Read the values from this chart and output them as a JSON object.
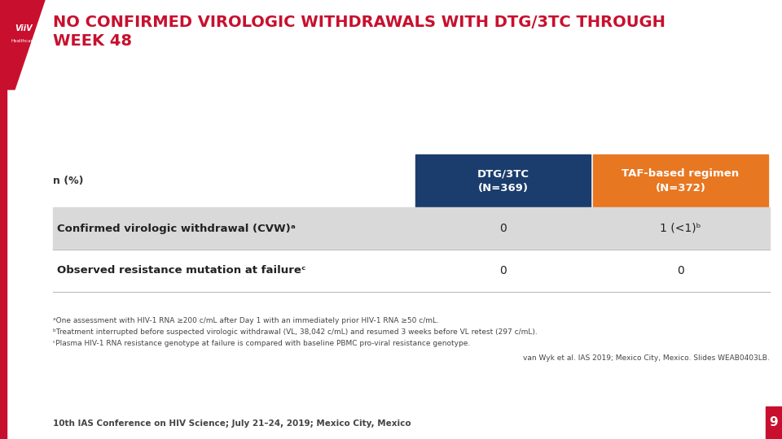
{
  "title_line1": "NO CONFIRMED VIROLOGIC WITHDRAWALS WITH DTG/3TC THROUGH",
  "title_line2": "WEEK 48",
  "title_color": "#c8102e",
  "title_fontsize": 14,
  "bg_color": "#ffffff",
  "sidebar_color": "#c8102e",
  "col1_header": "DTG/3TC\n(N=369)",
  "col2_header": "TAF-based regimen\n(N=372)",
  "col1_header_bg": "#1b3d6e",
  "col2_header_bg": "#e87722",
  "header_text_color": "#ffffff",
  "row_label_col": "n (%)",
  "rows": [
    {
      "label": "Confirmed virologic withdrawal (CVW)ᵃ",
      "val1": "0",
      "val2": "1 (<1)ᵇ",
      "row_bg": "#d9d9d9"
    },
    {
      "label": "Observed resistance mutation at failureᶜ",
      "val1": "0",
      "val2": "0",
      "row_bg": "#ffffff"
    }
  ],
  "footnotes": [
    "ᵃOne assessment with HIV-1 RNA ≥200 c/mL after Day 1 with an immediately prior HIV-1 RNA ≥50 c/mL.",
    "ᵇTreatment interrupted before suspected virologic withdrawal (VL, 38,042 c/mL) and resumed 3 weeks before VL retest (297 c/mL).",
    "ᶜPlasma HIV-1 RNA resistance genotype at failure is compared with baseline PBMC pro-viral resistance genotype."
  ],
  "citation": "van Wyk et al. IAS 2019; Mexico City, Mexico. Slides WEAB0403LB.",
  "conference": "10th IAS Conference on HIV Science; July 21–24, 2019; Mexico City, Mexico",
  "page_num": "9",
  "footnote_fontsize": 6.5,
  "conference_fontsize": 7.5
}
